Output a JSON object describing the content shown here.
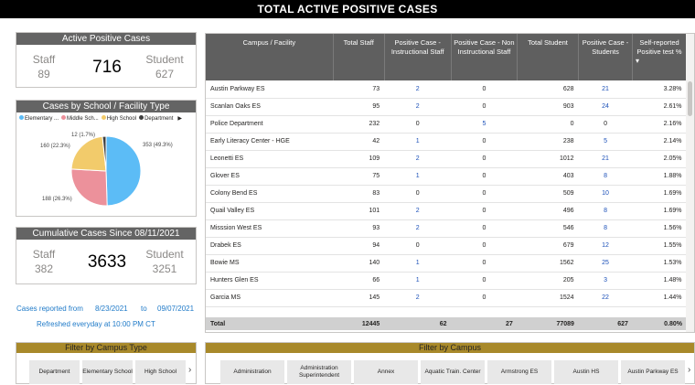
{
  "header": {
    "title": "TOTAL ACTIVE POSITIVE CASES"
  },
  "active_cases": {
    "title": "Active Positive Cases",
    "staff_label": "Staff",
    "staff_value": "89",
    "total_value": "716",
    "student_label": "Student",
    "student_value": "627"
  },
  "by_type": {
    "title": "Cases by School / Facility Type",
    "legend": [
      "Elementary ...",
      "Middle Sch...",
      "High School",
      "Department"
    ],
    "slice_labels": [
      "353 (49.3%)",
      "188 (26.3%)",
      "160 (22.3%)",
      "12 (1.7%)"
    ],
    "arrow": "▶"
  },
  "cumulative": {
    "title": "Cumulative Cases Since 08/11/2021",
    "staff_label": "Staff",
    "staff_value": "382",
    "total_value": "3633",
    "student_label": "Student",
    "student_value": "3251"
  },
  "notes": {
    "reported_label": "Cases reported from",
    "from_date": "8/23/2021",
    "to_label": "to",
    "to_date": "09/07/2021",
    "refresh": "Refreshed everyday at 10:00 PM CT"
  },
  "table": {
    "columns": [
      "Campus / Facility",
      "Total Staff",
      "Positive Case - Instructional Staff",
      "Positive Case - Non Instructional Staff",
      "Total Student",
      "Positive Case - Students",
      "Self-reported Positive test %"
    ],
    "sort_indicator": "▾",
    "rows": [
      [
        "Austin Parkway ES",
        "73",
        "2",
        "0",
        "628",
        "21",
        "3.28%"
      ],
      [
        "Scanlan Oaks ES",
        "95",
        "2",
        "0",
        "903",
        "24",
        "2.61%"
      ],
      [
        "Police Department",
        "232",
        "0",
        "5",
        "0",
        "0",
        "2.16%"
      ],
      [
        "Early Literacy Center - HGE",
        "42",
        "1",
        "0",
        "238",
        "5",
        "2.14%"
      ],
      [
        "Leonetti ES",
        "109",
        "2",
        "0",
        "1012",
        "21",
        "2.05%"
      ],
      [
        "Glover ES",
        "75",
        "1",
        "0",
        "403",
        "8",
        "1.88%"
      ],
      [
        "Colony Bend ES",
        "83",
        "0",
        "0",
        "509",
        "10",
        "1.69%"
      ],
      [
        "Quail Valley ES",
        "101",
        "2",
        "0",
        "496",
        "8",
        "1.69%"
      ],
      [
        "Misssion West ES",
        "93",
        "2",
        "0",
        "546",
        "8",
        "1.56%"
      ],
      [
        "Drabek ES",
        "94",
        "0",
        "0",
        "679",
        "12",
        "1.55%"
      ],
      [
        "Bowie MS",
        "140",
        "1",
        "0",
        "1562",
        "25",
        "1.53%"
      ],
      [
        "Hunters Glen ES",
        "66",
        "1",
        "0",
        "205",
        "3",
        "1.48%"
      ],
      [
        "Garcia MS",
        "145",
        "2",
        "0",
        "1524",
        "22",
        "1.44%"
      ]
    ],
    "total": [
      "Total",
      "12445",
      "62",
      "27",
      "77089",
      "627",
      "0.80%"
    ]
  },
  "filter_type": {
    "title": "Filter by Campus Type",
    "chips": [
      "Department",
      "Elementary School",
      "High School"
    ],
    "arrow": "›"
  },
  "filter_campus": {
    "title": "Filter by Campus",
    "chips": [
      "Administration",
      "Administration Superintendent",
      "Annex",
      "Aquatic Train. Center",
      "Armstrong ES",
      "Austin HS",
      "Austin Parkway ES"
    ],
    "arrow": "›"
  },
  "colors": {
    "elementary": "#5cbcf6",
    "middle": "#ec919b",
    "high": "#f2cb6b",
    "department": "#3f3f3f",
    "header_gray": "#646464",
    "filter_gold": "#a8892a",
    "link_blue": "#1a4fb8"
  }
}
